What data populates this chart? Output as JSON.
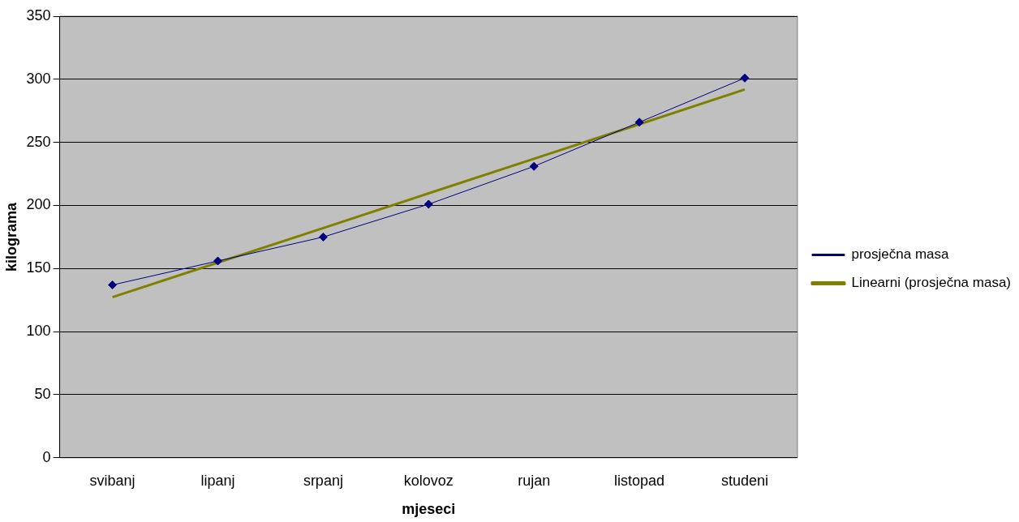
{
  "chart_data": {
    "type": "line",
    "xlabel": "mjeseci",
    "ylabel": "kilograma",
    "categories": [
      "svibanj",
      "lipanj",
      "srpanj",
      "kolovoz",
      "rujan",
      "listopad",
      "studeni"
    ],
    "series": [
      {
        "name": "prosječna masa",
        "color": "#000080",
        "marker": "diamond",
        "values": [
          137,
          156,
          175,
          201,
          231,
          266,
          301
        ]
      },
      {
        "name": "Linearni (prosječna masa)",
        "color": "#808000",
        "marker": "none",
        "values": [
          127.3,
          154.7,
          182.1,
          209.6,
          237.0,
          264.4,
          291.9
        ]
      }
    ],
    "ylim": [
      0,
      350
    ],
    "yticks": [
      0,
      50,
      100,
      150,
      200,
      250,
      300,
      350
    ],
    "grid": "y",
    "legend": "right"
  }
}
